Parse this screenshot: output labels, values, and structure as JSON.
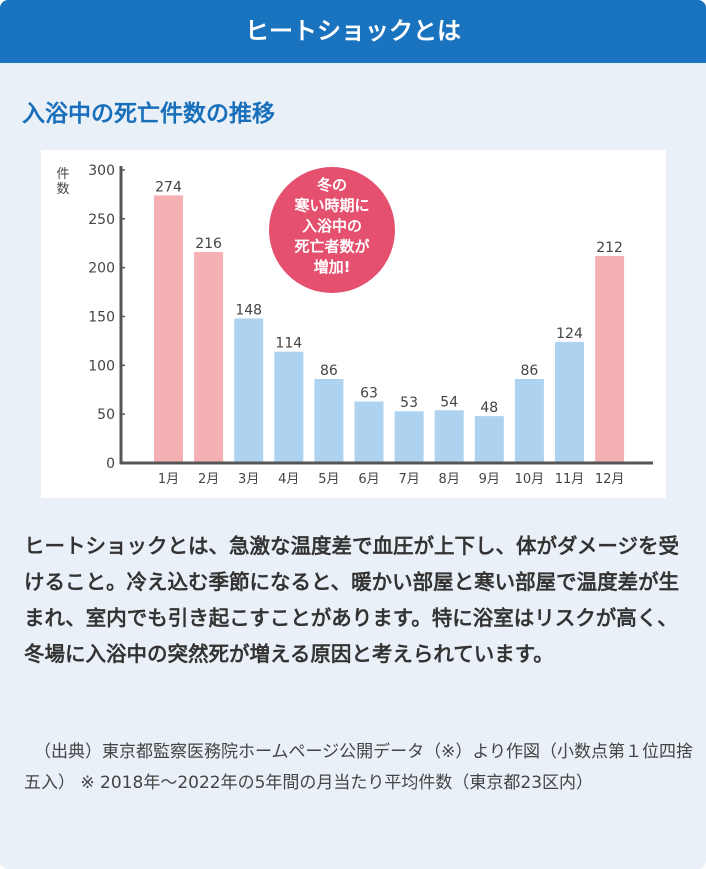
{
  "header": {
    "title": "ヒートショックとは"
  },
  "section": {
    "title": "入浴中の死亡件数の推移"
  },
  "chart_data": {
    "type": "bar",
    "title": "",
    "ylabel": "件数",
    "xlabel": "",
    "ylim": [
      0,
      300
    ],
    "yticks": [
      0,
      50,
      100,
      150,
      200,
      250,
      300
    ],
    "categories": [
      "1月",
      "2月",
      "3月",
      "4月",
      "5月",
      "6月",
      "7月",
      "8月",
      "9月",
      "10月",
      "11月",
      "12月"
    ],
    "values": [
      274,
      216,
      148,
      114,
      86,
      63,
      53,
      54,
      48,
      86,
      124,
      212
    ],
    "highlight": [
      "winter",
      "winter",
      "other",
      "other",
      "other",
      "other",
      "other",
      "other",
      "other",
      "other",
      "other",
      "winter"
    ],
    "colors": {
      "winter": "#f5b0b3",
      "other": "#aed3f0",
      "axis": "#555555",
      "callout": "#e5506e"
    },
    "annotation": [
      "冬の",
      "寒い時期に",
      "入浴中の",
      "死亡者数が",
      "増加!"
    ],
    "grid": false,
    "legend": "none"
  },
  "description": "ヒートショックとは、急激な温度差で血圧が上下し、体がダメージを受けること。冷え込む季節になると、暖かい部屋と寒い部屋で温度差が生まれ、室内でも引き起こすことがあります。特に浴室はリスクが高く、冬場に入浴中の突然死が増える原因と考えられています。",
  "source": "（出典）東京都監察医務院ホームページ公開データ（※）より作図（小数点第１位四捨五入） ※ 2018年〜2022年の5年間の月当たり平均件数（東京都23区内）"
}
